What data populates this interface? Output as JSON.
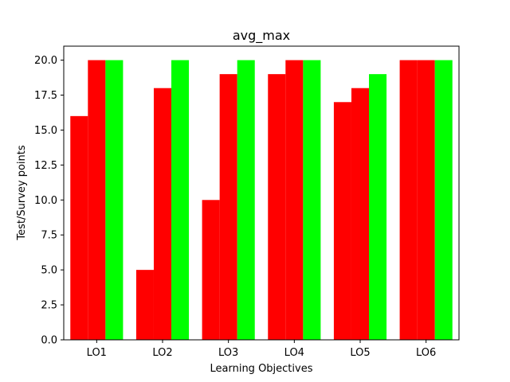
{
  "chart_data": {
    "type": "bar",
    "title": "avg_max",
    "xlabel": "Learning Objectives",
    "ylabel": "Test/Survey points",
    "categories": [
      "LO1",
      "LO2",
      "LO3",
      "LO4",
      "LO5",
      "LO6"
    ],
    "ylim": [
      0,
      21
    ],
    "yticks": [
      "0.0",
      "2.5",
      "5.0",
      "7.5",
      "10.0",
      "12.5",
      "15.0",
      "17.5",
      "20.0"
    ],
    "grid": false,
    "series": [
      {
        "values": [
          16,
          5,
          10,
          19,
          17,
          20
        ],
        "color": "#ff0000"
      },
      {
        "values": [
          20,
          18,
          19,
          20,
          18,
          20
        ],
        "color": "#ff0000"
      },
      {
        "values": [
          20,
          20,
          20,
          20,
          19,
          20
        ],
        "color": "#00ff00"
      }
    ]
  }
}
